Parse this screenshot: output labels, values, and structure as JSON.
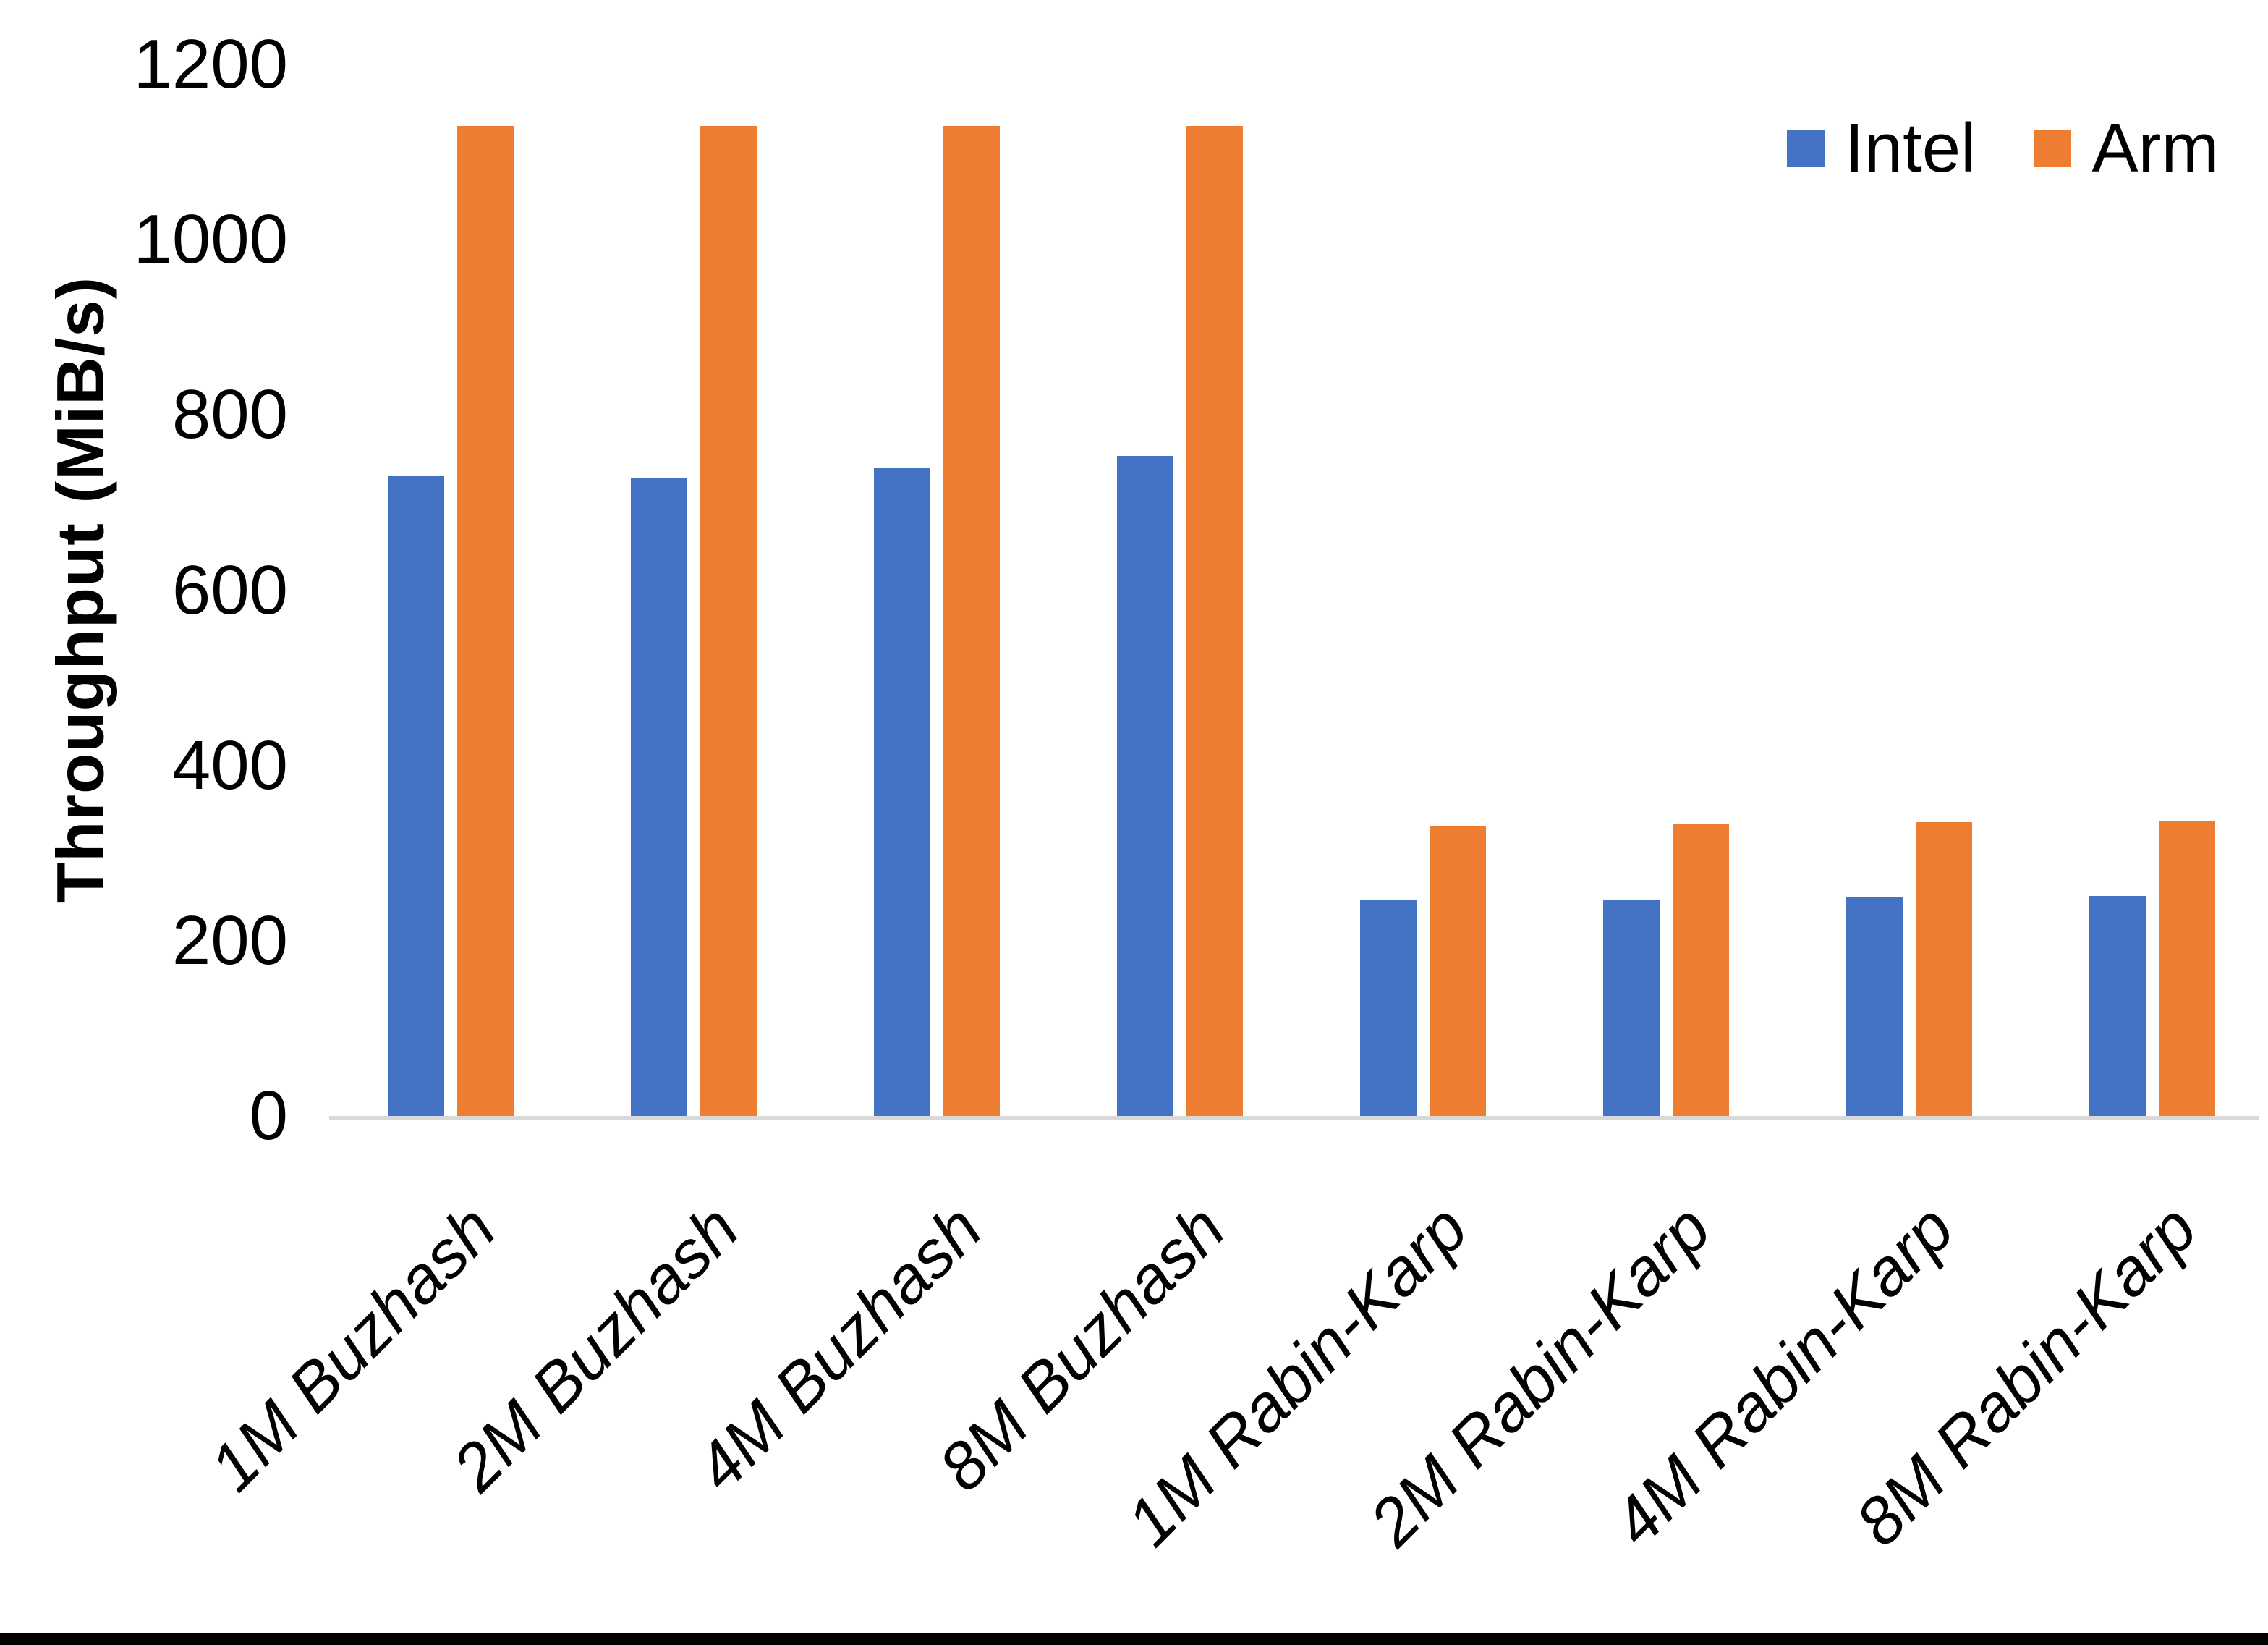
{
  "chart_data": {
    "type": "bar",
    "title": "",
    "ylabel": "Throughput (MiB/s)",
    "xlabel": "",
    "ylim": [
      0,
      1200
    ],
    "yticks": [
      0,
      200,
      400,
      600,
      800,
      1000,
      1200
    ],
    "grid": false,
    "legend_position": "top-right",
    "categories": [
      "1M Buzhash",
      "2M Buzhash",
      "4M Buzhash",
      "8M Buzhash",
      "1M Rabin-Karp",
      "2M Rabin-Karp",
      "4M Rabin-Karp",
      "8M Rabin-Karp"
    ],
    "series": [
      {
        "name": "Intel",
        "color": "#4472C4",
        "values": [
          730,
          728,
          740,
          753,
          247,
          247,
          250,
          251
        ]
      },
      {
        "name": "Arm",
        "color": "#ED7D31",
        "values": [
          1130,
          1130,
          1130,
          1130,
          330,
          333,
          335,
          337
        ]
      }
    ],
    "axis_line_color": "#D9D9D9",
    "text_color": "#000000",
    "background_color": "#FFFFFF"
  }
}
